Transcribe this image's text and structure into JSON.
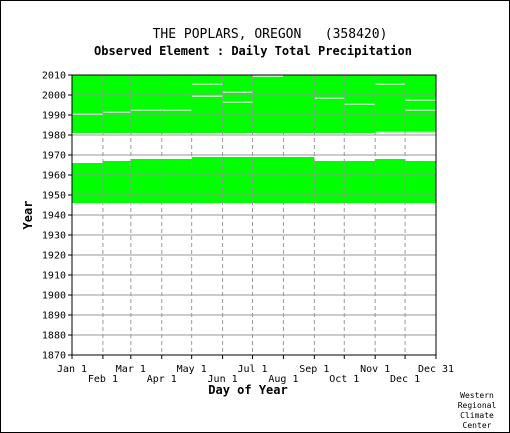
{
  "chart_data": {
    "type": "heatmap",
    "title": "THE POPLARS, OREGON   (358420)",
    "subtitle": "Observed Element : Daily Total Precipitation",
    "xlabel": "Day of Year",
    "ylabel": "Year",
    "credit": [
      "Western",
      "Regional",
      "Climate",
      "Center"
    ],
    "xlim": [
      1,
      366
    ],
    "ylim": [
      1870,
      2010
    ],
    "grid": true,
    "x_ticks_upper": [
      {
        "label": "Jan 1",
        "day": 1
      },
      {
        "label": "Mar 1",
        "day": 60
      },
      {
        "label": "May 1",
        "day": 121
      },
      {
        "label": "Jul 1",
        "day": 182
      },
      {
        "label": "Sep 1",
        "day": 244
      },
      {
        "label": "Nov 1",
        "day": 305
      },
      {
        "label": "Dec 31",
        "day": 366
      }
    ],
    "x_ticks_lower": [
      {
        "label": "Feb 1",
        "day": 32
      },
      {
        "label": "Apr 1",
        "day": 91
      },
      {
        "label": "Jun 1",
        "day": 152
      },
      {
        "label": "Aug 1",
        "day": 213
      },
      {
        "label": "Oct 1",
        "day": 274
      },
      {
        "label": "Dec 1",
        "day": 335
      }
    ],
    "y_ticks": [
      2010,
      2000,
      1990,
      1980,
      1970,
      1960,
      1950,
      1940,
      1930,
      1920,
      1910,
      1900,
      1890,
      1880,
      1870
    ],
    "data_color": "#00ff00",
    "observed_periods": [
      {
        "start_year": 1946,
        "end_year": 1965,
        "start_day": 1,
        "end_day": 366
      },
      {
        "start_year": 1965,
        "end_year": 1966,
        "start_day": 1,
        "end_day": 32
      },
      {
        "start_year": 1965,
        "end_year": 1967,
        "start_day": 32,
        "end_day": 60
      },
      {
        "start_year": 1965,
        "end_year": 1968,
        "start_day": 60,
        "end_day": 121
      },
      {
        "start_year": 1965,
        "end_year": 1969,
        "start_day": 121,
        "end_day": 244
      },
      {
        "start_year": 1965,
        "end_year": 1967,
        "start_day": 244,
        "end_day": 305
      },
      {
        "start_year": 1965,
        "end_year": 1968,
        "start_day": 305,
        "end_day": 335
      },
      {
        "start_year": 1965,
        "end_year": 1967,
        "start_day": 335,
        "end_day": 366
      },
      {
        "start_year": 1981,
        "end_year": 2010,
        "start_day": 1,
        "end_day": 366
      }
    ],
    "missing_periods": [
      {
        "start_year": 1990,
        "end_year": 1991,
        "start_day": 1,
        "end_day": 32
      },
      {
        "start_year": 1991,
        "end_year": 1992,
        "start_day": 32,
        "end_day": 60
      },
      {
        "start_year": 1992,
        "end_year": 1993,
        "start_day": 60,
        "end_day": 121
      },
      {
        "start_year": 2005,
        "end_year": 2006,
        "start_day": 121,
        "end_day": 152
      },
      {
        "start_year": 1999,
        "end_year": 2000,
        "start_day": 121,
        "end_day": 152
      },
      {
        "start_year": 2001,
        "end_year": 2002,
        "start_day": 152,
        "end_day": 182
      },
      {
        "start_year": 1996,
        "end_year": 1997,
        "start_day": 152,
        "end_day": 182
      },
      {
        "start_year": 2009,
        "end_year": 2010,
        "start_day": 182,
        "end_day": 213
      },
      {
        "start_year": 1998,
        "end_year": 1999,
        "start_day": 244,
        "end_day": 274
      },
      {
        "start_year": 1995,
        "end_year": 1996,
        "start_day": 274,
        "end_day": 305
      },
      {
        "start_year": 2005,
        "end_year": 2006,
        "start_day": 305,
        "end_day": 335
      },
      {
        "start_year": 1997,
        "end_year": 1998,
        "start_day": 335,
        "end_day": 366
      },
      {
        "start_year": 1992,
        "end_year": 1993,
        "start_day": 335,
        "end_day": 366
      },
      {
        "start_year": 1981,
        "end_year": 1982,
        "start_day": 305,
        "end_day": 366
      }
    ]
  }
}
